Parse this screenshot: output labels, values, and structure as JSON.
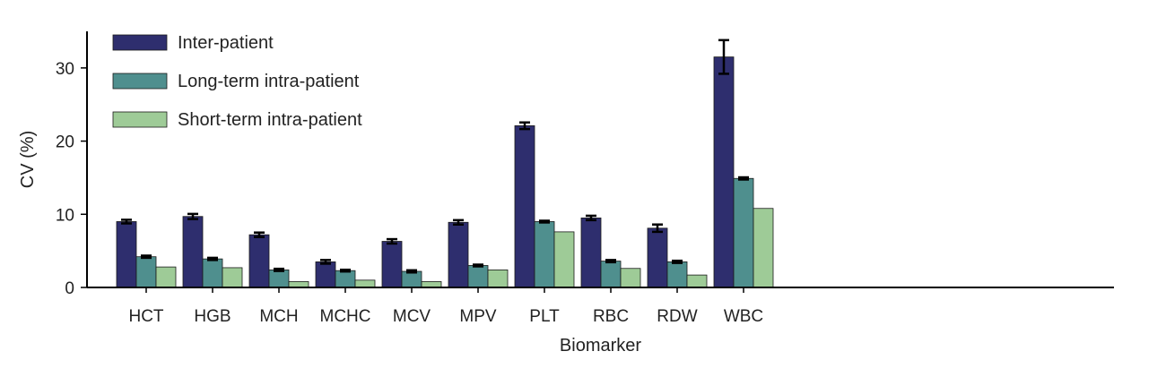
{
  "chart_data": {
    "type": "bar",
    "title": "",
    "xlabel": "Biomarker",
    "ylabel": "CV (%)",
    "ylim": [
      0,
      35
    ],
    "yticks": [
      0,
      10,
      20,
      30
    ],
    "grid": false,
    "legend_position": "top-left",
    "categories": [
      "HCT",
      "HGB",
      "MCH",
      "MCHC",
      "MCV",
      "MPV",
      "PLT",
      "RBC",
      "RDW",
      "WBC"
    ],
    "series": [
      {
        "name": "Inter-patient",
        "color": "#2e2e6e",
        "values": [
          9.0,
          9.7,
          7.2,
          3.5,
          6.3,
          8.9,
          22.1,
          9.5,
          8.1,
          31.5
        ],
        "errors": [
          0.25,
          0.35,
          0.3,
          0.25,
          0.3,
          0.3,
          0.45,
          0.3,
          0.5,
          2.3
        ]
      },
      {
        "name": "Long-term intra-patient",
        "color": "#4f8f8e",
        "values": [
          4.2,
          3.9,
          2.4,
          2.3,
          2.2,
          3.0,
          9.0,
          3.6,
          3.5,
          14.9
        ],
        "errors": [
          0.15,
          0.15,
          0.15,
          0.12,
          0.15,
          0.12,
          0.12,
          0.15,
          0.15,
          0.15
        ]
      },
      {
        "name": "Short-term intra-patient",
        "color": "#9ecb97",
        "values": [
          2.8,
          2.7,
          0.8,
          1.0,
          0.8,
          2.4,
          7.6,
          2.6,
          1.7,
          10.8
        ],
        "errors": [
          0,
          0,
          0,
          0,
          0,
          0,
          0,
          0,
          0,
          0
        ]
      }
    ]
  }
}
